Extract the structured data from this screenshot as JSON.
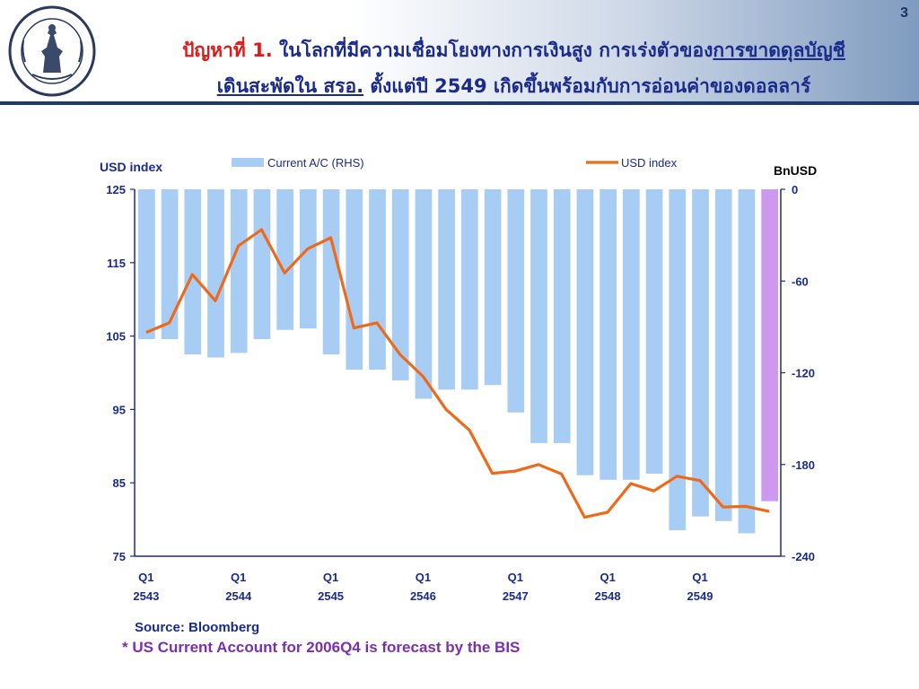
{
  "page_number": "3",
  "header": {
    "title_red": "ปัญหาที่ 1.",
    "title_line1_a": " ในโลกที่มีความเชื่อมโยงทางการเงินสูง การเร่งตัวของ",
    "title_line1_u": "การขาดดุลบัญชี",
    "title_line2_u": "เดินสะพัดใน สรอ.",
    "title_line2_b": " ตั้งแต่ปี 2549 เกิดขึ้นพร้อมกับการอ่อนค่าของดอลลาร์"
  },
  "colors": {
    "bar": "#a7cdf5",
    "bar_forecast": "#cc99ee",
    "line": "#ee6a1a",
    "axis": "#1a2b8c",
    "text": "#1a2b8c"
  },
  "chart_data": {
    "type": "bar+line",
    "left_axis_label": "USD index",
    "right_axis_label": "BnUSD",
    "left_ylim": [
      75,
      125
    ],
    "left_ticks": [
      "125",
      "115",
      "105",
      "95",
      "85",
      "75"
    ],
    "right_ylim": [
      -240,
      0
    ],
    "right_ticks": [
      "0",
      "-60",
      "-120",
      "-180",
      "-240"
    ],
    "x_tick_labels": [
      {
        "q": "Q1",
        "year": "2543",
        "index": 0
      },
      {
        "q": "Q1",
        "year": "2544",
        "index": 4
      },
      {
        "q": "Q1",
        "year": "2545",
        "index": 8
      },
      {
        "q": "Q1",
        "year": "2546",
        "index": 12
      },
      {
        "q": "Q1",
        "year": "2547",
        "index": 16
      },
      {
        "q": "Q1",
        "year": "2548",
        "index": 20
      },
      {
        "q": "Q1",
        "year": "2549",
        "index": 24
      }
    ],
    "series": [
      {
        "name": "Current A/C (RHS)",
        "kind": "bar",
        "axis": "right",
        "values": [
          -98,
          -98,
          -108,
          -110,
          -107,
          -98,
          -92,
          -91,
          -108,
          -118,
          -118,
          -125,
          -137,
          -131,
          -131,
          -128,
          -146,
          -166,
          -166,
          -187,
          -190,
          -190,
          -186,
          -223,
          -214,
          -217,
          -225,
          -204
        ],
        "forecast_index": 27
      },
      {
        "name": "USD index",
        "kind": "line",
        "axis": "left",
        "values": [
          105.5,
          106.8,
          113.4,
          109.8,
          117.3,
          119.5,
          113.6,
          116.9,
          118.4,
          106.1,
          106.8,
          102.5,
          99.5,
          95.0,
          92.2,
          86.3,
          86.6,
          87.5,
          86.2,
          80.3,
          81.0,
          84.9,
          83.9,
          85.9,
          85.3,
          81.7,
          81.8,
          81.1
        ]
      }
    ]
  },
  "source_text": "Source: Bloomberg",
  "note_text": "* US Current Account for 2006Q4 is forecast by the BIS"
}
